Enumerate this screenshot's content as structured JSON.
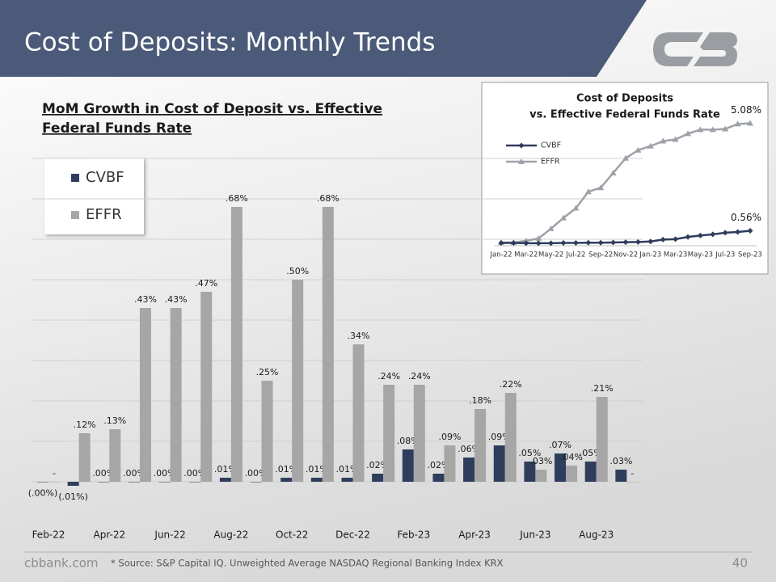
{
  "header": {
    "title": "Cost of Deposits: Monthly Trends"
  },
  "chart_data": [
    {
      "type": "bar",
      "title": [
        "MoM Growth in Cost of Deposit vs. Effective",
        "Federal Funds Rate"
      ],
      "categories": [
        "Feb-22",
        null,
        "Apr-22",
        null,
        "Jun-22",
        null,
        "Aug-22",
        null,
        "Oct-22",
        null,
        "Dec-22",
        null,
        "Feb-23",
        null,
        "Apr-23",
        null,
        "Jun-23",
        null,
        "Aug-23",
        null
      ],
      "series": [
        {
          "name": "CVBF",
          "color": "#2f3d5c",
          "values": [
            -0.001,
            -0.01,
            0,
            0,
            0,
            0,
            0.01,
            0,
            0.01,
            0.01,
            0.01,
            0.02,
            0.08,
            0.02,
            0.06,
            0.09,
            0.05,
            0.07,
            0.05,
            0.03
          ],
          "value_labels": [
            "(.00%)",
            "(.01%)",
            ".00%",
            ".00%",
            ".00%",
            ".00%",
            ".01%",
            ".00%",
            ".01%",
            ".01%",
            ".01%",
            ".02%",
            ".08%",
            ".02%",
            ".06%",
            ".09%",
            ".05%",
            ".07%",
            ".05%",
            ".03%"
          ]
        },
        {
          "name": "EFFR",
          "color": "#a6a6a6",
          "values": [
            0,
            0.12,
            0.13,
            0.43,
            0.43,
            0.47,
            0.68,
            0.25,
            0.5,
            0.68,
            0.34,
            0.24,
            0.24,
            0.09,
            0.18,
            0.22,
            0.03,
            0.04,
            0.21,
            0
          ],
          "value_labels": [
            "-",
            ".12%",
            ".13%",
            ".43%",
            ".43%",
            ".47%",
            ".68%",
            ".25%",
            ".50%",
            ".68%",
            ".34%",
            ".24%",
            ".24%",
            ".09%",
            ".18%",
            ".22%",
            ".03%",
            ".04%",
            ".21%",
            "-"
          ]
        }
      ],
      "ylim": [
        -0.1,
        0.8
      ],
      "yticks": [
        0,
        0.1,
        0.2,
        0.3,
        0.4,
        0.5,
        0.6,
        0.7,
        0.8
      ],
      "grid": true,
      "legend": "upper-left"
    },
    {
      "type": "line",
      "title": [
        "Cost of Deposits",
        "vs. Effective Federal Funds Rate"
      ],
      "categories": [
        "Jan-22",
        null,
        "Mar-22",
        null,
        "May-22",
        null,
        "Jul-22",
        null,
        "Sep-22",
        null,
        "Nov-22",
        null,
        "Jan-23",
        null,
        "Mar-23",
        null,
        "May-23",
        null,
        "Jul-23",
        null,
        "Sep-23"
      ],
      "series": [
        {
          "name": "CVBF",
          "color": "#2f3d5c",
          "marker": "diamond",
          "values": [
            0.05,
            0.05,
            0.04,
            0.04,
            0.04,
            0.05,
            0.05,
            0.06,
            0.06,
            0.07,
            0.08,
            0.09,
            0.11,
            0.19,
            0.21,
            0.3,
            0.36,
            0.41,
            0.48,
            0.51,
            0.56
          ],
          "value_labels": [
            null,
            null,
            null,
            null,
            null,
            null,
            null,
            null,
            null,
            null,
            null,
            null,
            null,
            null,
            null,
            null,
            null,
            null,
            null,
            null,
            "0.56%"
          ]
        },
        {
          "name": "EFFR",
          "color": "#9ea2a8",
          "marker": "triangle",
          "values": [
            0.07,
            0.07,
            0.14,
            0.24,
            0.65,
            1.1,
            1.51,
            2.2,
            2.37,
            2.99,
            3.61,
            3.95,
            4.12,
            4.33,
            4.4,
            4.64,
            4.81,
            4.81,
            4.84,
            5.05,
            5.08
          ],
          "value_labels": [
            null,
            null,
            null,
            null,
            null,
            null,
            null,
            null,
            null,
            null,
            null,
            null,
            null,
            null,
            null,
            null,
            null,
            null,
            null,
            null,
            "5.08%"
          ]
        }
      ],
      "ylim": [
        0,
        5.3
      ],
      "legend": "upper-left"
    }
  ],
  "footer": {
    "website": "cbbank.com",
    "source": "* Source: S&P Capital IQ. Unweighted Average NASDAQ Regional Banking Index KRX",
    "page": "40"
  }
}
